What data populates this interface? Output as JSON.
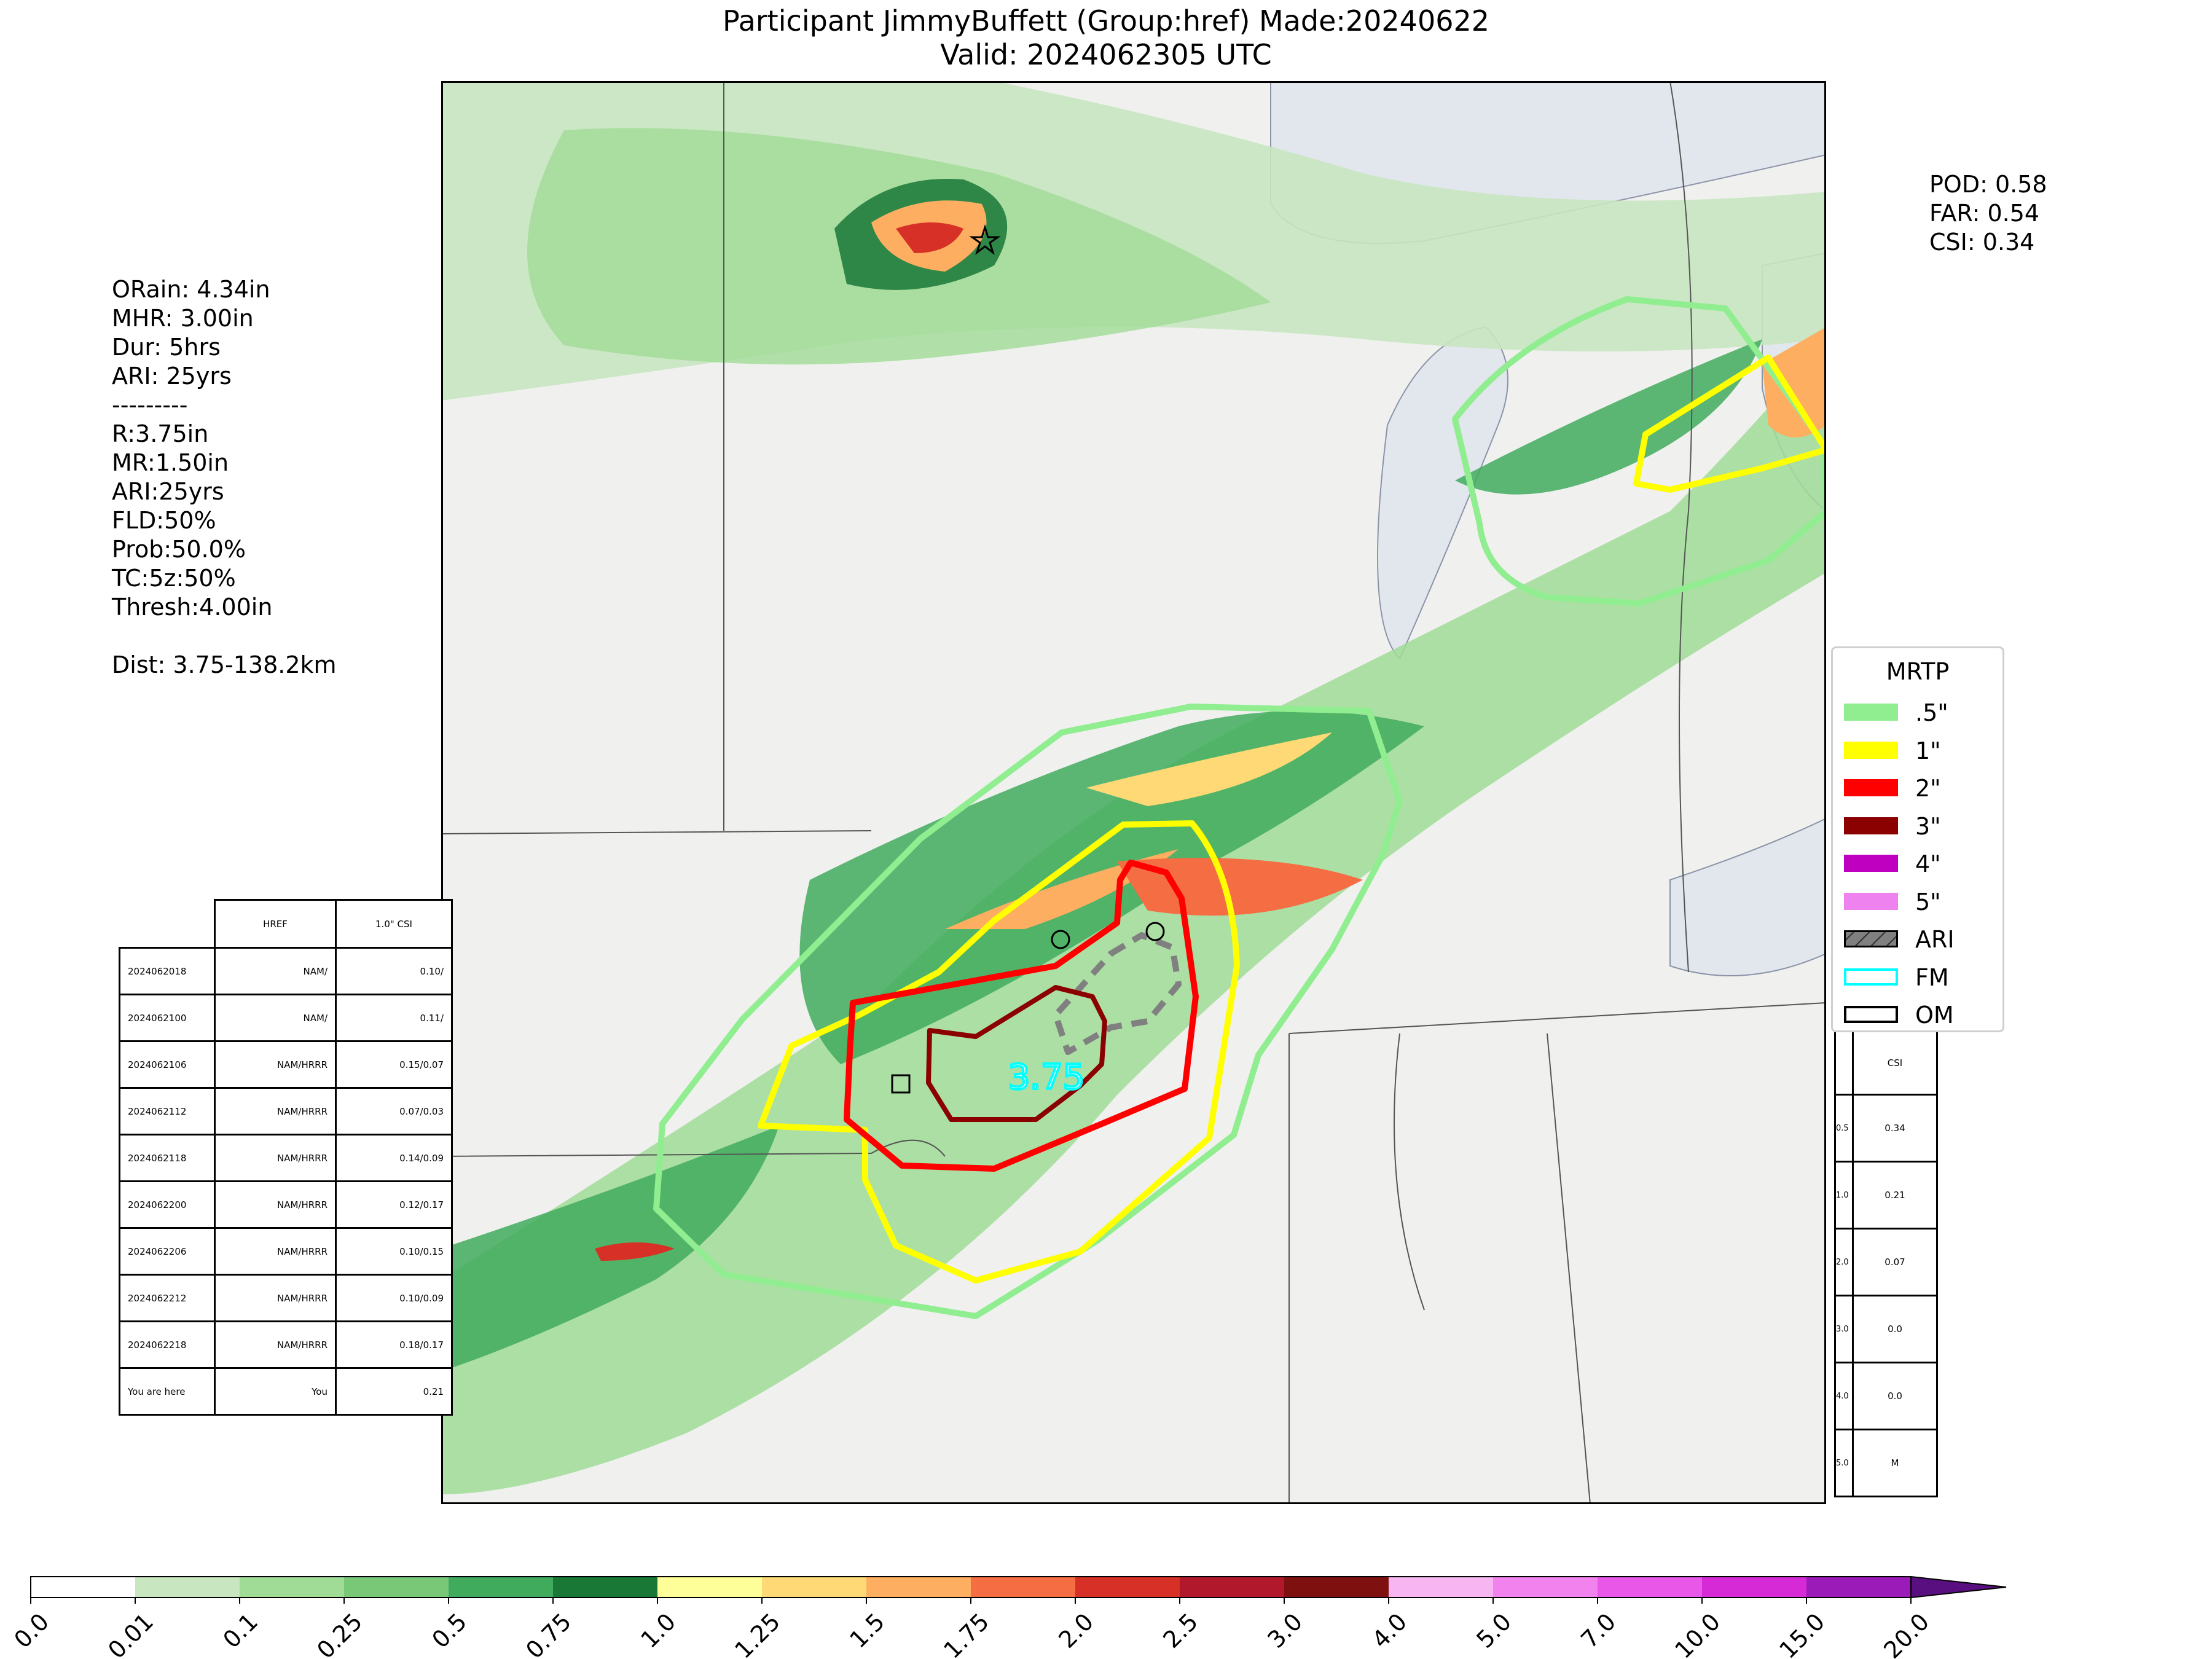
{
  "header": {
    "title_line1": "Participant JimmyBuffett (Group:href) Made:20240622",
    "title_line2": "Valid: 2024062305 UTC"
  },
  "stats": {
    "lines": [
      "ORain: 4.34in",
      "MHR: 3.00in",
      "Dur: 5hrs",
      "ARI: 25yrs",
      "---------",
      "R:3.75in",
      "MR:1.50in",
      "ARI:25yrs",
      "FLD:50%",
      "Prob:50.0%",
      "TC:5z:50%",
      "Thresh:4.00in",
      "",
      "Dist: 3.75-138.2km"
    ]
  },
  "scores": {
    "pod": "POD: 0.58",
    "far": "FAR: 0.54",
    "csi": "CSI: 0.34"
  },
  "map": {
    "center_label": "3.75"
  },
  "run_table": {
    "headers": [
      "",
      "HREF",
      "1.0\" CSI"
    ],
    "rows": [
      [
        "2024062018",
        "NAM/",
        "0.10/"
      ],
      [
        "2024062100",
        "NAM/",
        "0.11/"
      ],
      [
        "2024062106",
        "NAM/HRRR",
        "0.15/0.07"
      ],
      [
        "2024062112",
        "NAM/HRRR",
        "0.07/0.03"
      ],
      [
        "2024062118",
        "NAM/HRRR",
        "0.14/0.09"
      ],
      [
        "2024062200",
        "NAM/HRRR",
        "0.12/0.17"
      ],
      [
        "2024062206",
        "NAM/HRRR",
        "0.10/0.15"
      ],
      [
        "2024062212",
        "NAM/HRRR",
        "0.10/0.09"
      ],
      [
        "2024062218",
        "NAM/HRRR",
        "0.18/0.17"
      ],
      [
        "You are here",
        "You",
        "0.21"
      ]
    ]
  },
  "csi_table": {
    "header": "CSI",
    "rows": [
      [
        "0.5",
        "0.34"
      ],
      [
        "1.0",
        "0.21"
      ],
      [
        "2.0",
        "0.07"
      ],
      [
        "3.0",
        "0.0"
      ],
      [
        "4.0",
        "0.0"
      ],
      [
        "5.0",
        "M"
      ]
    ]
  },
  "legend": {
    "title": "MRTP",
    "items": [
      {
        "label": ".5\"",
        "color": "#90ee90",
        "style": "fill"
      },
      {
        "label": "1\"",
        "color": "#ffff00",
        "style": "fill"
      },
      {
        "label": "2\"",
        "color": "#ff0000",
        "style": "fill"
      },
      {
        "label": "3\"",
        "color": "#8b0000",
        "style": "fill"
      },
      {
        "label": "4\"",
        "color": "#c000c0",
        "style": "fill"
      },
      {
        "label": "5\"",
        "color": "#ee82ee",
        "style": "fill"
      },
      {
        "label": "ARI",
        "color": "#808080",
        "style": "hatch"
      },
      {
        "label": "FM",
        "color": "#00ffff",
        "style": "outline"
      },
      {
        "label": "OM",
        "color": "#000000",
        "style": "outline"
      }
    ]
  },
  "colorbar": {
    "ticks": [
      "0.0",
      "0.01",
      "0.1",
      "0.25",
      "0.5",
      "0.75",
      "1.0",
      "1.25",
      "1.5",
      "1.75",
      "2.0",
      "2.5",
      "3.0",
      "4.0",
      "5.0",
      "7.0",
      "10.0",
      "15.0",
      "20.0"
    ],
    "colors": [
      "#ffffff",
      "#c8e6c0",
      "#a0dc96",
      "#78c878",
      "#41ab5d",
      "#1a7837",
      "#ffff99",
      "#fed976",
      "#fdae61",
      "#f46d43",
      "#d73027",
      "#b2182b",
      "#7f1010",
      "#f7b6f2",
      "#f283ee",
      "#e857e8",
      "#d62ad6",
      "#9a1bb8"
    ]
  }
}
